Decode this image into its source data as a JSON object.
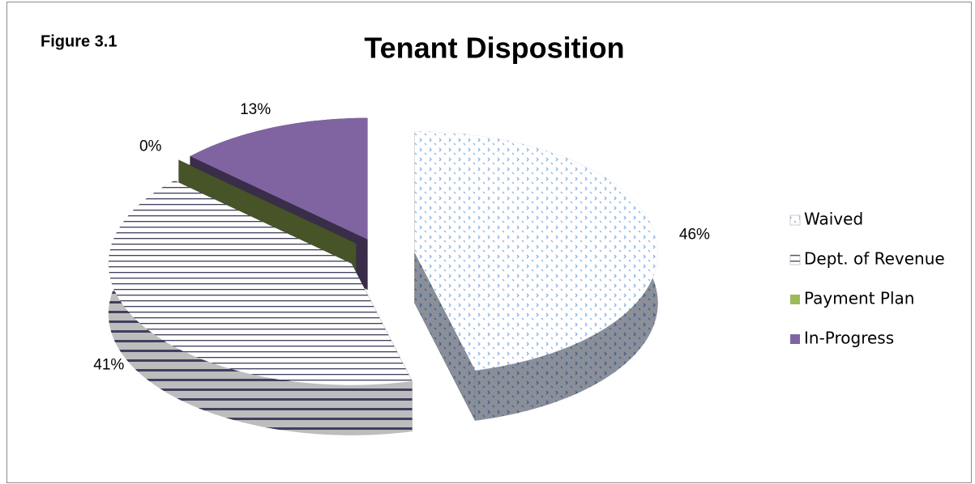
{
  "chart_data": {
    "type": "pie",
    "title": "Tenant Disposition",
    "annotation": "Figure 3.1",
    "categories": [
      "Waived",
      "Dept. of Revenue",
      "Payment Plan",
      "In-Progress"
    ],
    "values": [
      46,
      41,
      0,
      13
    ],
    "value_labels": [
      "46%",
      "41%",
      "0%",
      "13%"
    ],
    "colors": [
      "#8db3e2",
      "#3f3f5f",
      "#9bbb59",
      "#8064a2"
    ],
    "fills": [
      "dotted",
      "striped",
      "solid",
      "solid"
    ],
    "legend": "right",
    "explode": true
  }
}
